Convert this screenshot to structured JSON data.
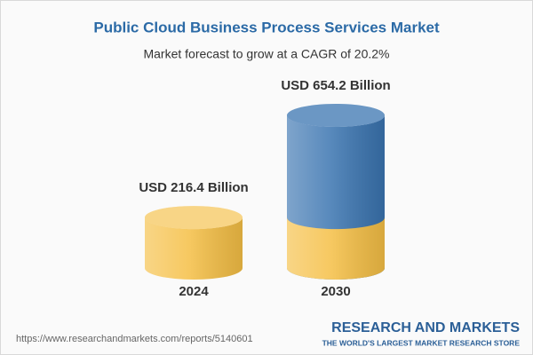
{
  "chart_data": {
    "type": "cylinder",
    "title": "Public Cloud Business Process Services Market",
    "subtitle": "Market forecast to grow at a CAGR of 20.2%",
    "categories": [
      "2024",
      "2030"
    ],
    "values": [
      216.4,
      654.2
    ],
    "value_labels": [
      "USD 216.4 Billion",
      "USD 654.2 Billion"
    ],
    "color": "#f5bf45",
    "growth_color": "#3a74b0"
  },
  "footer": {
    "url": "https://www.researchandmarkets.com/reports/5140601",
    "brand": "RESEARCH AND MARKETS",
    "tagline": "THE WORLD'S LARGEST MARKET RESEARCH STORE"
  }
}
